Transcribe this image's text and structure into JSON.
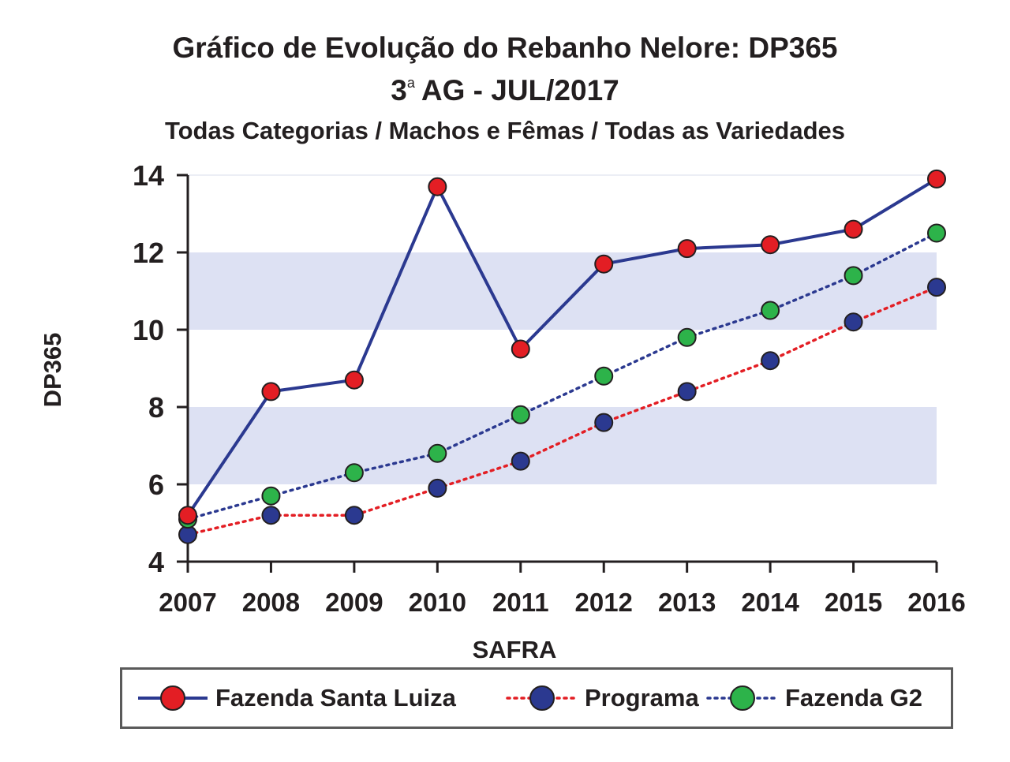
{
  "chart_data": {
    "type": "line",
    "title": "Gráfico de Evolução do Rebanho Nelore: DP365",
    "subtitle_line1_prefix": "3",
    "subtitle_line1_sup": "a",
    "subtitle_line1_suffix": "AG - JUL/2017",
    "subtitle_line2": "Todas Categorias / Machos e Fêmas / Todas as Variedades",
    "xlabel": "SAFRA",
    "ylabel": "DP365",
    "x": [
      "2007",
      "2008",
      "2009",
      "2010",
      "2011",
      "2012",
      "2013",
      "2014",
      "2015",
      "2016"
    ],
    "yticks": [
      4,
      6,
      8,
      10,
      12,
      14
    ],
    "ylim": [
      4,
      14
    ],
    "shaded_bands": [
      [
        6,
        8
      ],
      [
        10,
        12
      ]
    ],
    "series": [
      {
        "name": "Fazenda Santa Luiza",
        "line_style": "solid",
        "line_color": "#2b3990",
        "marker_color": "#e31e24",
        "values": [
          5.2,
          8.4,
          8.7,
          13.7,
          9.5,
          11.7,
          12.1,
          12.2,
          12.6,
          13.9
        ]
      },
      {
        "name": "Programa",
        "line_style": "dotted",
        "line_color": "#e31e24",
        "marker_color": "#2b3990",
        "values": [
          4.7,
          5.2,
          5.2,
          5.9,
          6.6,
          7.6,
          8.4,
          9.2,
          10.2,
          11.1
        ]
      },
      {
        "name": "Fazenda G2",
        "line_style": "dotted",
        "line_color": "#2b3990",
        "marker_color": "#2db34a",
        "values": [
          5.1,
          5.7,
          6.3,
          6.8,
          7.8,
          8.8,
          9.8,
          10.5,
          11.4,
          12.5
        ]
      }
    ],
    "grid": false,
    "legend_position": "bottom"
  }
}
